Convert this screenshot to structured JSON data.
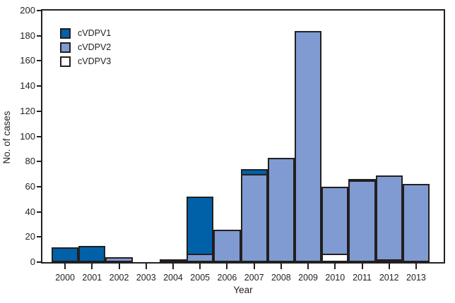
{
  "chart_data": {
    "type": "bar",
    "stacked": true,
    "title": "",
    "xlabel": "Year",
    "ylabel": "No. of cases",
    "ylim": [
      0,
      200
    ],
    "yticks": [
      0,
      20,
      40,
      60,
      80,
      100,
      120,
      140,
      160,
      180,
      200
    ],
    "categories": [
      "2000",
      "2001",
      "2002",
      "2003",
      "2004",
      "2005",
      "2006",
      "2007",
      "2008",
      "2009",
      "2010",
      "2011",
      "2012",
      "2013"
    ],
    "series": [
      {
        "name": "cVDPV1",
        "color": "#0061a9",
        "values": [
          12,
          13,
          0,
          0,
          2,
          46,
          0,
          5,
          0,
          0,
          0,
          2,
          0,
          0
        ]
      },
      {
        "name": "cVDPV2",
        "color": "#7f9bd1",
        "values": [
          0,
          0,
          4,
          0,
          0,
          7,
          26,
          70,
          83,
          184,
          54,
          65,
          68,
          62
        ]
      },
      {
        "name": "cVDPV3",
        "color": "#ffffff",
        "values": [
          0,
          0,
          0,
          0,
          0,
          0,
          0,
          0,
          0,
          0,
          7,
          0,
          2,
          0
        ]
      }
    ],
    "totals": [
      12,
      13,
      4,
      0,
      2,
      53,
      26,
      75,
      83,
      184,
      61,
      67,
      70,
      62
    ],
    "legend": {
      "position": "top-left",
      "entries": [
        "cVDPV1",
        "cVDPV2",
        "cVDPV3"
      ]
    },
    "frame_color": "#231f20",
    "grid": false
  }
}
